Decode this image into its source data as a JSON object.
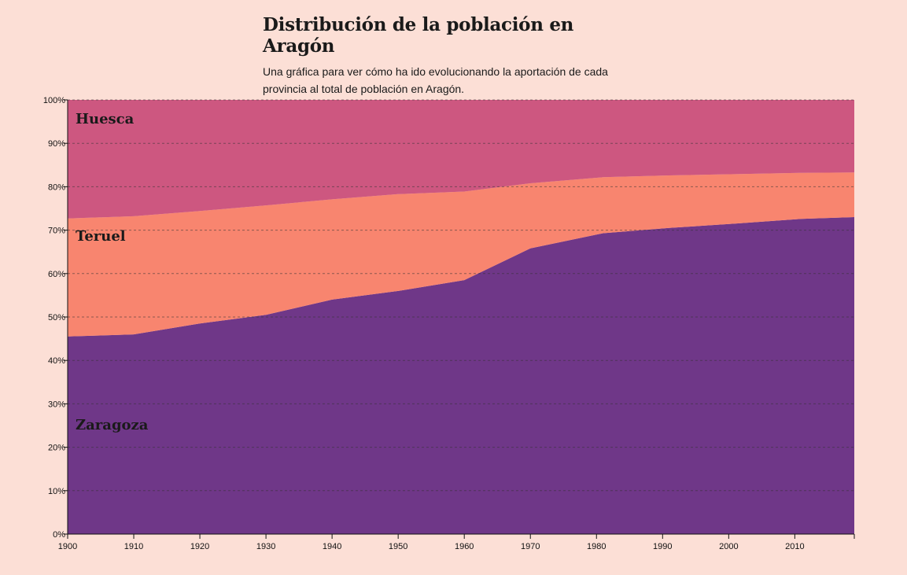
{
  "header": {
    "title": "Distribución de la población en Aragón",
    "subtitle": "Una gráfica para ver cómo ha ido evolucionando la aportación de cada provincia al total de población en Aragón."
  },
  "colors": {
    "background": "#fcdfd6",
    "zaragoza": "#6f3788",
    "teruel": "#f8856f",
    "huesca": "#cd5780",
    "grid": "#333333"
  },
  "chart_data": {
    "type": "area",
    "stacked": true,
    "normalized": true,
    "title": "Distribución de la población en Aragón",
    "subtitle": "Una gráfica para ver cómo ha ido evolucionando la aportación de cada provincia al total de población en Aragón.",
    "x": [
      1900,
      1910,
      1920,
      1930,
      1940,
      1950,
      1960,
      1970,
      1981,
      1991,
      2001,
      2011,
      2019
    ],
    "xlim": [
      1900,
      2019
    ],
    "x_ticks": [
      "1900",
      "1910",
      "1920",
      "1930",
      "1940",
      "1950",
      "1960",
      "1970",
      "1980",
      "1990",
      "2000",
      "2010"
    ],
    "y_ticks": [
      "0%",
      "10%",
      "20%",
      "30%",
      "40%",
      "50%",
      "60%",
      "70%",
      "80%",
      "90%",
      "100%"
    ],
    "ylim": [
      0,
      100
    ],
    "grid": true,
    "series": [
      {
        "name": "Zaragoza",
        "values": [
          45.5,
          46.0,
          48.5,
          50.5,
          54.0,
          56.0,
          58.5,
          65.8,
          69.3,
          70.5,
          71.5,
          72.6,
          73.0
        ]
      },
      {
        "name": "Teruel",
        "values": [
          27.2,
          27.2,
          25.9,
          25.2,
          23.1,
          22.3,
          20.4,
          15.0,
          12.9,
          12.1,
          11.4,
          10.6,
          10.3
        ]
      },
      {
        "name": "Huesca",
        "values": [
          27.3,
          26.8,
          25.6,
          24.3,
          22.9,
          21.7,
          21.1,
          19.2,
          17.8,
          17.4,
          17.1,
          16.8,
          16.7
        ]
      }
    ]
  }
}
